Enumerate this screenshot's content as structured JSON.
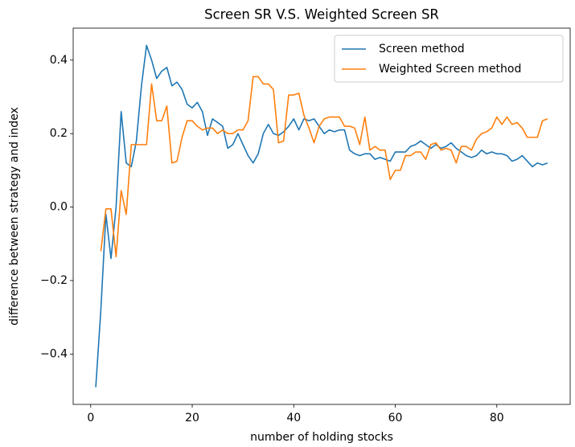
{
  "chart_data": {
    "type": "line",
    "title": "Screen SR V.S. Weighted Screen SR",
    "x_label": "number of holding stocks",
    "y_label": "difference between strategy and index",
    "x": [
      1,
      2,
      3,
      4,
      5,
      6,
      7,
      8,
      9,
      10,
      11,
      12,
      13,
      14,
      15,
      16,
      17,
      18,
      19,
      20,
      21,
      22,
      23,
      24,
      25,
      26,
      27,
      28,
      29,
      30,
      31,
      32,
      33,
      34,
      35,
      36,
      37,
      38,
      39,
      40,
      41,
      42,
      43,
      44,
      45,
      46,
      47,
      48,
      49,
      50,
      51,
      52,
      53,
      54,
      55,
      56,
      57,
      58,
      59,
      60,
      61,
      62,
      63,
      64,
      65,
      66,
      67,
      68,
      69,
      70,
      71,
      72,
      73,
      74,
      75,
      76,
      77,
      78,
      79,
      80,
      81,
      82,
      83,
      84,
      85,
      86,
      87,
      88,
      89,
      90
    ],
    "series": [
      {
        "name": "Screen method",
        "color": "#1f77b4",
        "values": [
          -0.49,
          -0.28,
          -0.02,
          -0.14,
          0.0,
          0.26,
          0.12,
          0.11,
          0.18,
          0.33,
          0.44,
          0.4,
          0.35,
          0.37,
          0.38,
          0.33,
          0.34,
          0.32,
          0.28,
          0.27,
          0.285,
          0.26,
          0.195,
          0.24,
          0.23,
          0.22,
          0.16,
          0.17,
          0.2,
          0.17,
          0.14,
          0.12,
          0.145,
          0.2,
          0.225,
          0.2,
          0.195,
          0.205,
          0.22,
          0.24,
          0.21,
          0.24,
          0.235,
          0.24,
          0.22,
          0.2,
          0.21,
          0.205,
          0.21,
          0.21,
          0.155,
          0.145,
          0.14,
          0.145,
          0.145,
          0.13,
          0.135,
          0.13,
          0.125,
          0.15,
          0.15,
          0.15,
          0.165,
          0.17,
          0.18,
          0.17,
          0.16,
          0.17,
          0.16,
          0.165,
          0.175,
          0.16,
          0.15,
          0.14,
          0.135,
          0.14,
          0.155,
          0.145,
          0.15,
          0.145,
          0.145,
          0.14,
          0.125,
          0.13,
          0.14,
          0.125,
          0.11,
          0.12,
          0.115,
          0.12
        ]
      },
      {
        "name": "Weighted Screen method",
        "color": "#ff7f0e",
        "values": [
          null,
          -0.12,
          -0.005,
          -0.005,
          -0.135,
          0.045,
          -0.02,
          0.17,
          0.17,
          0.17,
          0.17,
          0.335,
          0.235,
          0.235,
          0.275,
          0.12,
          0.125,
          0.19,
          0.235,
          0.235,
          0.22,
          0.21,
          0.215,
          0.215,
          0.2,
          0.21,
          0.2,
          0.2,
          0.21,
          0.21,
          0.235,
          0.355,
          0.355,
          0.335,
          0.335,
          0.32,
          0.175,
          0.18,
          0.305,
          0.305,
          0.31,
          0.25,
          0.215,
          0.175,
          0.22,
          0.24,
          0.245,
          0.245,
          0.245,
          0.22,
          0.22,
          0.215,
          0.17,
          0.245,
          0.155,
          0.165,
          0.155,
          0.155,
          0.075,
          0.1,
          0.1,
          0.14,
          0.14,
          0.15,
          0.15,
          0.13,
          0.17,
          0.175,
          0.155,
          0.16,
          0.155,
          0.12,
          0.165,
          0.165,
          0.155,
          0.185,
          0.2,
          0.205,
          0.215,
          0.245,
          0.225,
          0.245,
          0.225,
          0.23,
          0.215,
          0.19,
          0.19,
          0.19,
          0.235,
          0.24
        ]
      }
    ],
    "xlim": [
      -3.45,
      94.45
    ],
    "ylim": [
      -0.537,
      0.487
    ],
    "xticks": [
      0,
      20,
      40,
      60,
      80
    ],
    "yticks": [
      {
        "value": -0.4,
        "label": "−0.4"
      },
      {
        "value": -0.2,
        "label": "−0.2"
      },
      {
        "value": 0,
        "label": "0.0"
      },
      0.2,
      0.4
    ],
    "legend": "upper right"
  }
}
